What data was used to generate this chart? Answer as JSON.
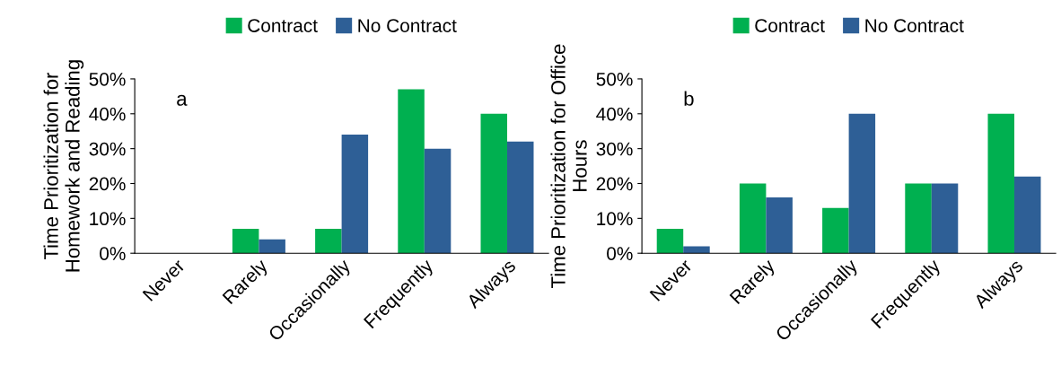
{
  "chart_data": [
    {
      "type": "bar",
      "ylabel": "Time Prioritization for\nHomework and Reading",
      "annotations": [
        "a"
      ],
      "categories": [
        "Never",
        "Rarely",
        "Occasionally",
        "Frequently",
        "Always"
      ],
      "series": [
        {
          "name": "Contract",
          "color": "#00b050",
          "values": [
            0,
            7,
            7,
            47,
            40
          ]
        },
        {
          "name": "No Contract",
          "color": "#2e5f96",
          "values": [
            0,
            4,
            34,
            30,
            32
          ]
        }
      ],
      "ylim": [
        0,
        50
      ],
      "yticks": [
        {
          "value": 0,
          "label": "0%"
        },
        {
          "value": 10,
          "label": "10%"
        },
        {
          "value": 20,
          "label": "20%"
        },
        {
          "value": 30,
          "label": "30%"
        },
        {
          "value": 40,
          "label": "40%"
        },
        {
          "value": 50,
          "label": "50%"
        }
      ],
      "grid": false,
      "legend": "top"
    },
    {
      "type": "bar",
      "ylabel": "Time Prioritization for Office\nHours",
      "annotations": [
        "b"
      ],
      "categories": [
        "Never",
        "Rarely",
        "Occasionally",
        "Frequently",
        "Always"
      ],
      "series": [
        {
          "name": "Contract",
          "color": "#00b050",
          "values": [
            7,
            20,
            13,
            20,
            40
          ]
        },
        {
          "name": "No Contract",
          "color": "#2e5f96",
          "values": [
            2,
            16,
            40,
            20,
            22
          ]
        }
      ],
      "ylim": [
        0,
        50
      ],
      "yticks": [
        {
          "value": 0,
          "label": "0%"
        },
        {
          "value": 10,
          "label": "10%"
        },
        {
          "value": 20,
          "label": "20%"
        },
        {
          "value": 30,
          "label": "30%"
        },
        {
          "value": 40,
          "label": "40%"
        },
        {
          "value": 50,
          "label": "50%"
        }
      ],
      "grid": false,
      "legend": "top"
    }
  ]
}
